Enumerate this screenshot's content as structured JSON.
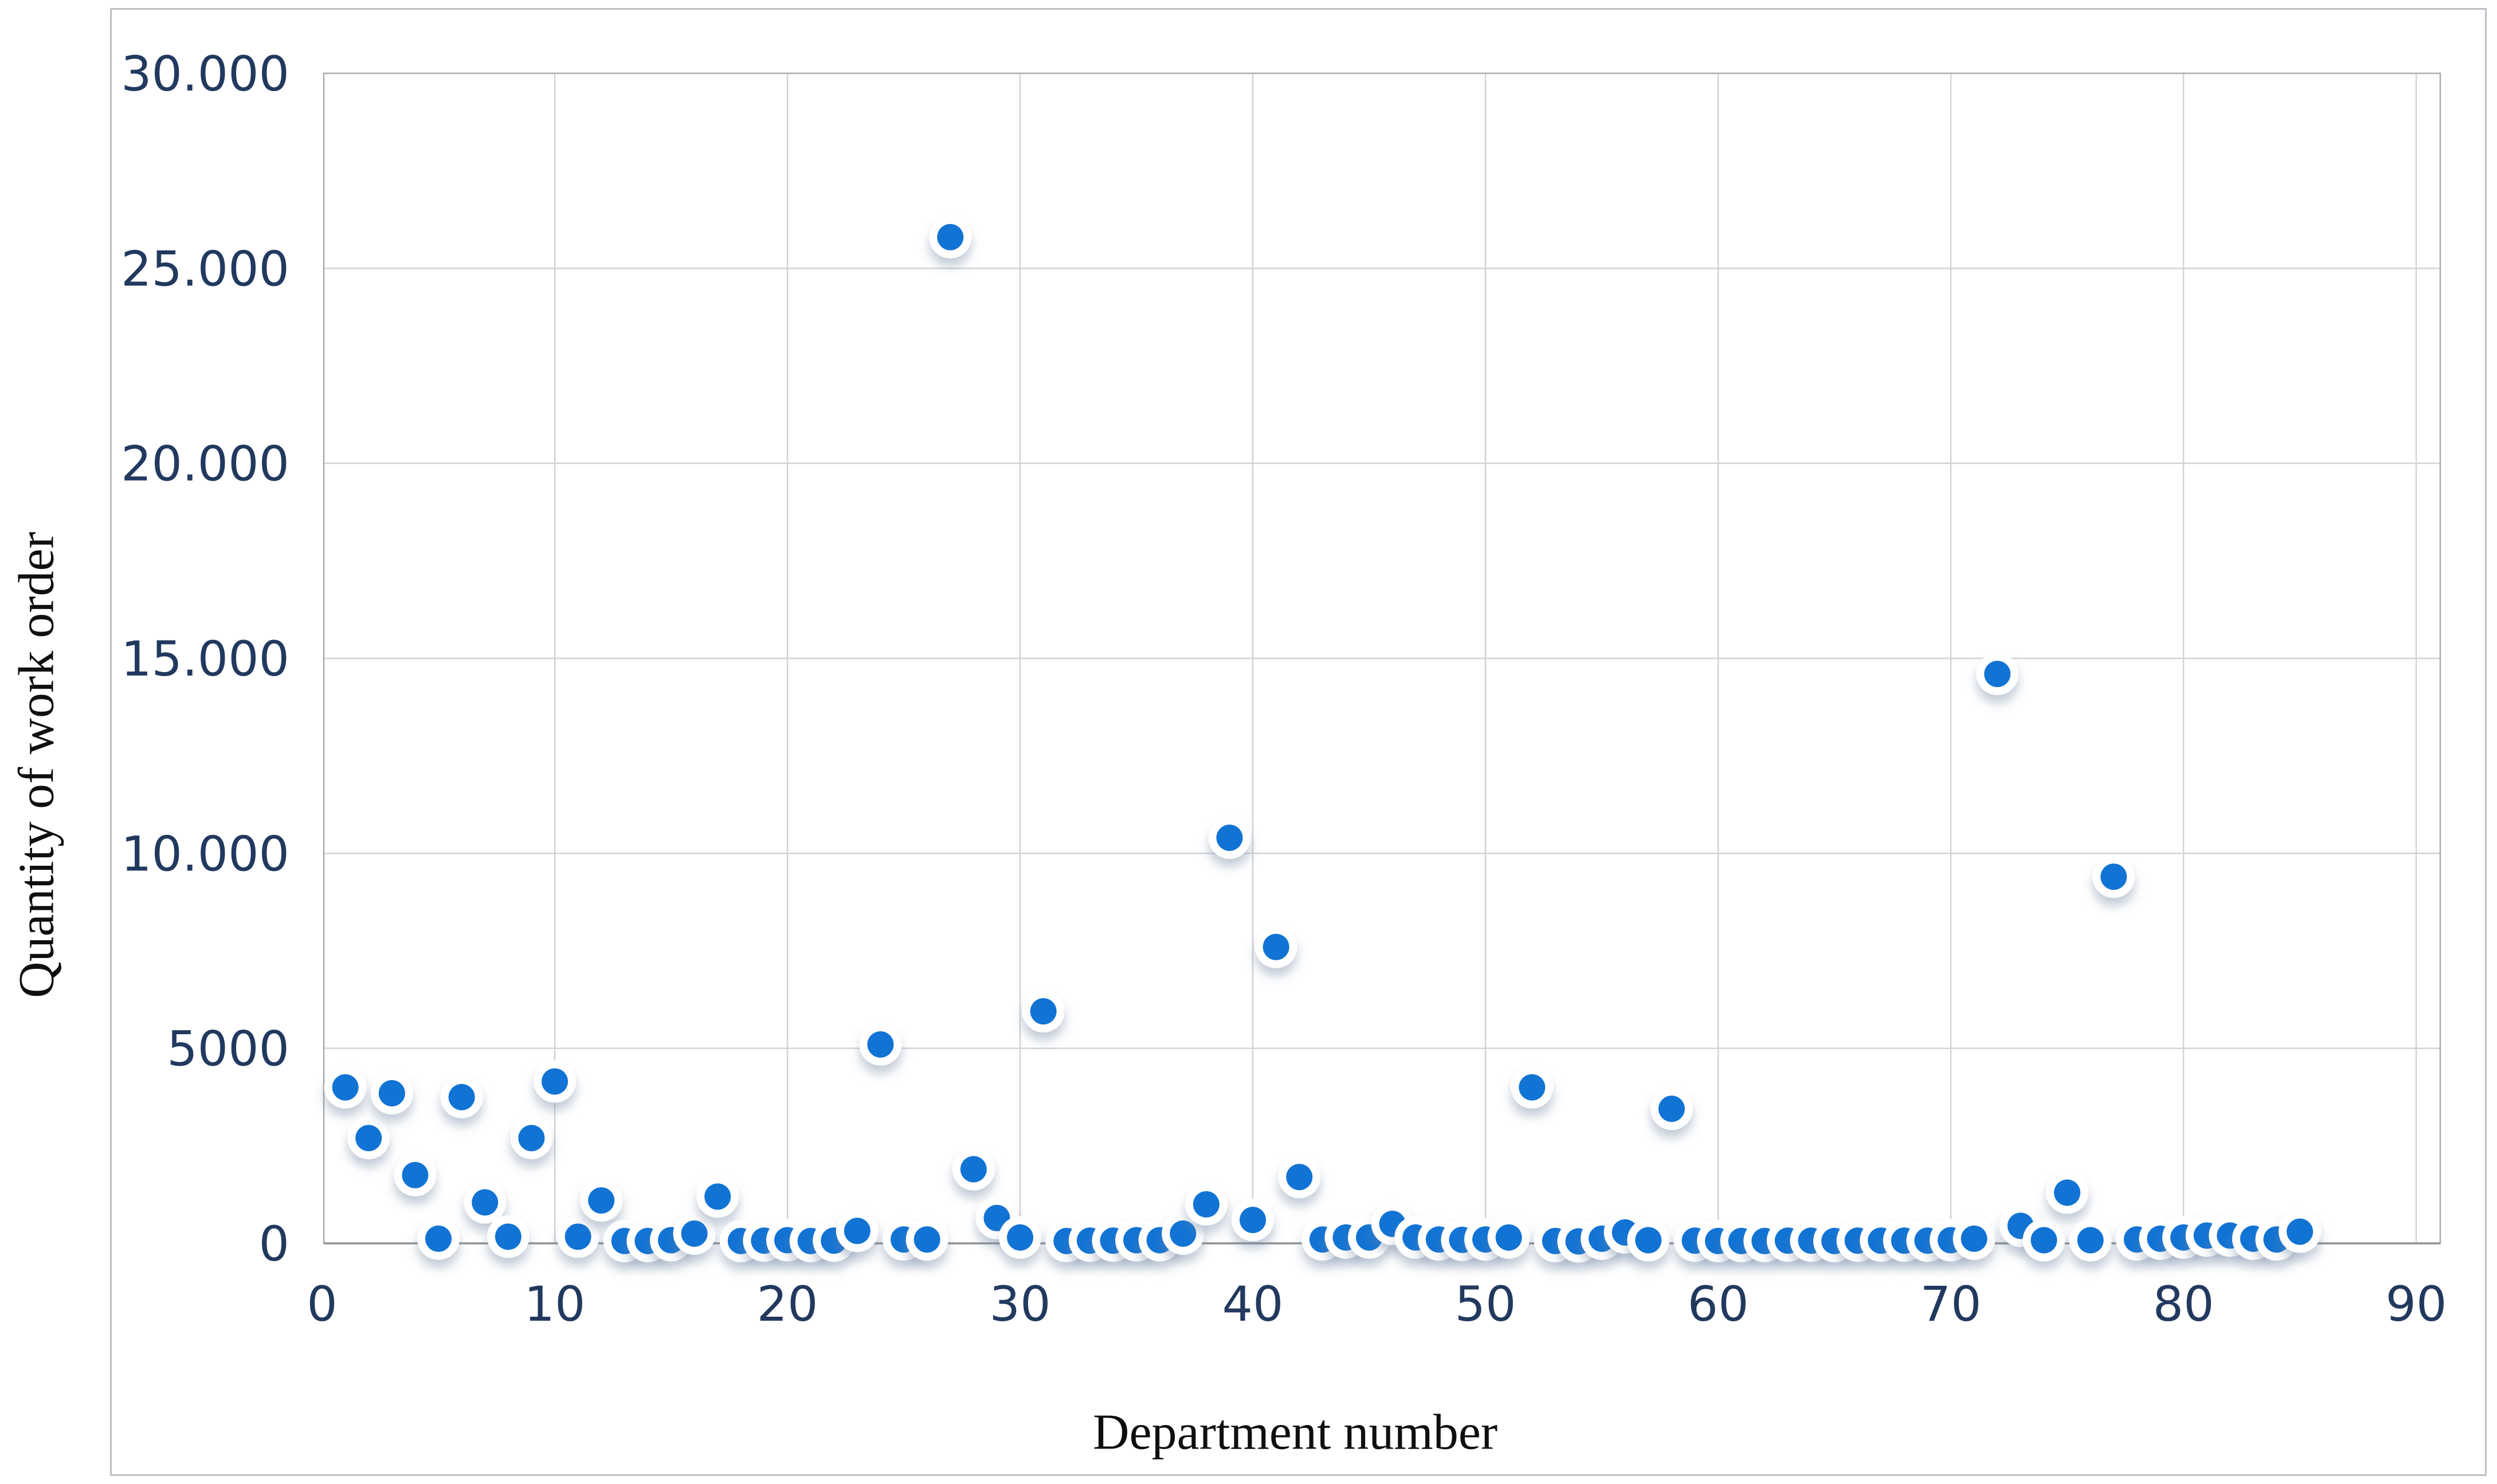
{
  "figure": {
    "x_axis_title": "Department number",
    "y_axis_title": "Quantity of work order",
    "colors": {
      "dot": "#1173d4",
      "halo": "#ffffff",
      "shadow": "#6f84a3",
      "grid": "#d0d3d7",
      "frame": "#a9abae",
      "axis_line": "#8f9194",
      "tick_text": "#22395f",
      "title_text": "#0f0f0f",
      "border": "#bcc0c6"
    }
  },
  "chart_data": {
    "type": "scatter",
    "title": "",
    "xlabel": "Department number",
    "ylabel": "Quantity of work order",
    "xlim": [
      0,
      92
    ],
    "ylim": [
      0,
      30000
    ],
    "grid": true,
    "legend": false,
    "x_tick_values": [
      0,
      10,
      20,
      30,
      40,
      50,
      60,
      70,
      80,
      90
    ],
    "x_tick_labels": [
      "0",
      "10",
      "20",
      "30",
      "40",
      "50",
      "60",
      "70",
      "80",
      "90"
    ],
    "y_tick_values": [
      0,
      5000,
      10000,
      15000,
      20000,
      25000,
      30000
    ],
    "y_tick_labels": [
      "0",
      "5000",
      "10.000",
      "15.000",
      "20.000",
      "25.000",
      "30.000"
    ],
    "points": [
      {
        "x": 1,
        "y": 4000
      },
      {
        "x": 2,
        "y": 2700
      },
      {
        "x": 3,
        "y": 3850
      },
      {
        "x": 4,
        "y": 1750
      },
      {
        "x": 5,
        "y": 120
      },
      {
        "x": 6,
        "y": 3750
      },
      {
        "x": 7,
        "y": 1050
      },
      {
        "x": 8,
        "y": 170
      },
      {
        "x": 9,
        "y": 2700
      },
      {
        "x": 10,
        "y": 4150
      },
      {
        "x": 11,
        "y": 170
      },
      {
        "x": 12,
        "y": 1100
      },
      {
        "x": 13,
        "y": 60
      },
      {
        "x": 14,
        "y": 60
      },
      {
        "x": 15,
        "y": 80
      },
      {
        "x": 16,
        "y": 250
      },
      {
        "x": 17,
        "y": 1200
      },
      {
        "x": 18,
        "y": 60
      },
      {
        "x": 19,
        "y": 70
      },
      {
        "x": 20,
        "y": 80
      },
      {
        "x": 21,
        "y": 60
      },
      {
        "x": 22,
        "y": 70
      },
      {
        "x": 23,
        "y": 320
      },
      {
        "x": 24,
        "y": 5100
      },
      {
        "x": 25,
        "y": 100
      },
      {
        "x": 26,
        "y": 100
      },
      {
        "x": 27,
        "y": 25800
      },
      {
        "x": 28,
        "y": 1900
      },
      {
        "x": 29,
        "y": 650
      },
      {
        "x": 30,
        "y": 150
      },
      {
        "x": 31,
        "y": 5950
      },
      {
        "x": 32,
        "y": 60
      },
      {
        "x": 33,
        "y": 70
      },
      {
        "x": 34,
        "y": 70
      },
      {
        "x": 35,
        "y": 80
      },
      {
        "x": 36,
        "y": 80
      },
      {
        "x": 37,
        "y": 250
      },
      {
        "x": 38,
        "y": 1000
      },
      {
        "x": 39,
        "y": 10400
      },
      {
        "x": 40,
        "y": 600
      },
      {
        "x": 41,
        "y": 7600
      },
      {
        "x": 42,
        "y": 1700
      },
      {
        "x": 43,
        "y": 100
      },
      {
        "x": 44,
        "y": 150
      },
      {
        "x": 45,
        "y": 150
      },
      {
        "x": 46,
        "y": 500
      },
      {
        "x": 47,
        "y": 150
      },
      {
        "x": 48,
        "y": 100
      },
      {
        "x": 49,
        "y": 90
      },
      {
        "x": 50,
        "y": 100
      },
      {
        "x": 51,
        "y": 150
      },
      {
        "x": 52,
        "y": 4000
      },
      {
        "x": 53,
        "y": 60
      },
      {
        "x": 54,
        "y": 50
      },
      {
        "x": 55,
        "y": 120
      },
      {
        "x": 56,
        "y": 280
      },
      {
        "x": 57,
        "y": 80
      },
      {
        "x": 58,
        "y": 3450
      },
      {
        "x": 59,
        "y": 70
      },
      {
        "x": 60,
        "y": 60
      },
      {
        "x": 61,
        "y": 60
      },
      {
        "x": 62,
        "y": 60
      },
      {
        "x": 63,
        "y": 70
      },
      {
        "x": 64,
        "y": 70
      },
      {
        "x": 65,
        "y": 60
      },
      {
        "x": 66,
        "y": 70
      },
      {
        "x": 67,
        "y": 70
      },
      {
        "x": 68,
        "y": 70
      },
      {
        "x": 69,
        "y": 70
      },
      {
        "x": 70,
        "y": 80
      },
      {
        "x": 71,
        "y": 120
      },
      {
        "x": 72,
        "y": 14600
      },
      {
        "x": 73,
        "y": 450
      },
      {
        "x": 74,
        "y": 80
      },
      {
        "x": 75,
        "y": 1300
      },
      {
        "x": 76,
        "y": 80
      },
      {
        "x": 77,
        "y": 9400
      },
      {
        "x": 78,
        "y": 100
      },
      {
        "x": 79,
        "y": 120
      },
      {
        "x": 80,
        "y": 150
      },
      {
        "x": 81,
        "y": 200
      },
      {
        "x": 82,
        "y": 200
      },
      {
        "x": 83,
        "y": 120
      },
      {
        "x": 84,
        "y": 100
      },
      {
        "x": 85,
        "y": 300
      }
    ]
  }
}
